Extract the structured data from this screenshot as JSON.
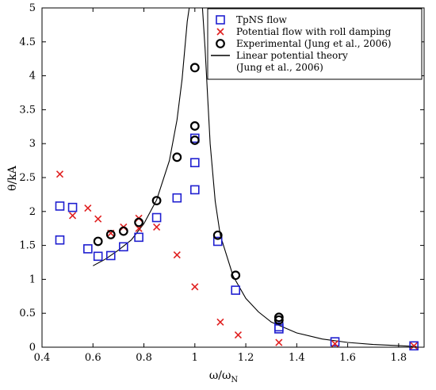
{
  "chart_data": {
    "type": "scatter",
    "title": "",
    "xlabel": "ω/ω",
    "xlabel_sub": "N",
    "ylabel": "θ/kA",
    "xlim": [
      0.4,
      1.9
    ],
    "ylim": [
      0,
      5
    ],
    "xticks": [
      "0.4",
      "0.6",
      "0.8",
      "1",
      "1.2",
      "1.4",
      "1.6",
      "1.8"
    ],
    "yticks": [
      "0",
      "0.5",
      "1",
      "1.5",
      "2",
      "2.5",
      "3",
      "3.5",
      "4",
      "4.5",
      "5"
    ],
    "legend_position": "top-right",
    "grid": false,
    "series": [
      {
        "name": "TpNS flow",
        "marker": "square",
        "color": "#1f1fd0",
        "points": [
          [
            0.47,
            2.08
          ],
          [
            0.47,
            1.58
          ],
          [
            0.52,
            2.06
          ],
          [
            0.58,
            1.45
          ],
          [
            0.62,
            1.34
          ],
          [
            0.67,
            1.35
          ],
          [
            0.72,
            1.48
          ],
          [
            0.78,
            1.62
          ],
          [
            0.85,
            1.91
          ],
          [
            0.93,
            2.2
          ],
          [
            1.0,
            3.08
          ],
          [
            1.0,
            2.72
          ],
          [
            1.0,
            2.32
          ],
          [
            1.09,
            1.56
          ],
          [
            1.16,
            0.84
          ],
          [
            1.33,
            0.3
          ],
          [
            1.33,
            0.27
          ],
          [
            1.55,
            0.08
          ],
          [
            1.86,
            0.02
          ]
        ]
      },
      {
        "name": "Potential flow with roll damping",
        "marker": "x",
        "color": "#e02020",
        "points": [
          [
            0.47,
            2.55
          ],
          [
            0.52,
            1.94
          ],
          [
            0.58,
            2.05
          ],
          [
            0.62,
            1.89
          ],
          [
            0.67,
            1.68
          ],
          [
            0.72,
            1.77
          ],
          [
            0.78,
            1.9
          ],
          [
            0.78,
            1.75
          ],
          [
            0.85,
            1.77
          ],
          [
            0.93,
            1.36
          ],
          [
            1.0,
            0.89
          ],
          [
            1.1,
            0.37
          ],
          [
            1.17,
            0.18
          ],
          [
            1.33,
            0.07
          ],
          [
            1.55,
            0.05
          ],
          [
            1.86,
            0.02
          ]
        ]
      },
      {
        "name": "Experimental (Jung et al., 2006)",
        "marker": "circle",
        "color": "#000000",
        "points": [
          [
            0.62,
            1.56
          ],
          [
            0.67,
            1.66
          ],
          [
            0.72,
            1.71
          ],
          [
            0.78,
            1.84
          ],
          [
            0.85,
            2.16
          ],
          [
            0.93,
            2.8
          ],
          [
            1.0,
            4.12
          ],
          [
            1.0,
            3.26
          ],
          [
            1.0,
            3.05
          ],
          [
            1.09,
            1.65
          ],
          [
            1.16,
            1.06
          ],
          [
            1.33,
            0.44
          ],
          [
            1.33,
            0.4
          ]
        ]
      },
      {
        "name": "Linear potential theory\n(Jung et al., 2006)",
        "marker": "line",
        "color": "#000000",
        "points": [
          [
            0.6,
            1.2
          ],
          [
            0.65,
            1.3
          ],
          [
            0.7,
            1.43
          ],
          [
            0.75,
            1.58
          ],
          [
            0.8,
            1.82
          ],
          [
            0.85,
            2.17
          ],
          [
            0.9,
            2.75
          ],
          [
            0.93,
            3.35
          ],
          [
            0.95,
            3.95
          ],
          [
            0.97,
            4.8
          ],
          [
            0.978,
            5.0
          ],
          [
            1.03,
            5.0
          ],
          [
            1.04,
            4.4
          ],
          [
            1.06,
            3.0
          ],
          [
            1.08,
            2.15
          ],
          [
            1.1,
            1.65
          ],
          [
            1.15,
            1.05
          ],
          [
            1.2,
            0.72
          ],
          [
            1.25,
            0.52
          ],
          [
            1.3,
            0.37
          ],
          [
            1.4,
            0.21
          ],
          [
            1.5,
            0.12
          ],
          [
            1.6,
            0.07
          ],
          [
            1.7,
            0.04
          ],
          [
            1.87,
            0.01
          ]
        ]
      }
    ]
  }
}
